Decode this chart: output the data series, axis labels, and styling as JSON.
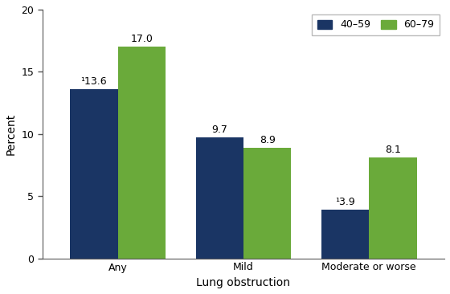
{
  "categories": [
    "Any",
    "Mild",
    "Moderate or worse"
  ],
  "series": [
    {
      "label": "40–59",
      "values": [
        13.6,
        9.7,
        3.9
      ],
      "color": "#1a3564"
    },
    {
      "label": "60–79",
      "values": [
        17.0,
        8.9,
        8.1
      ],
      "color": "#6aaa3a"
    }
  ],
  "xlabel": "Lung obstruction",
  "ylabel": "Percent",
  "ylim": [
    0,
    20
  ],
  "yticks": [
    0,
    5,
    10,
    15,
    20
  ],
  "bar_width": 0.38,
  "value_labels": {
    "40-59": [
      "¹13.6",
      "9.7",
      "¹3.9"
    ],
    "60-79": [
      "17.0",
      "8.9",
      "8.1"
    ]
  },
  "axis_fontsize": 10,
  "tick_fontsize": 9,
  "label_fontsize": 9,
  "background_color": "#ffffff"
}
